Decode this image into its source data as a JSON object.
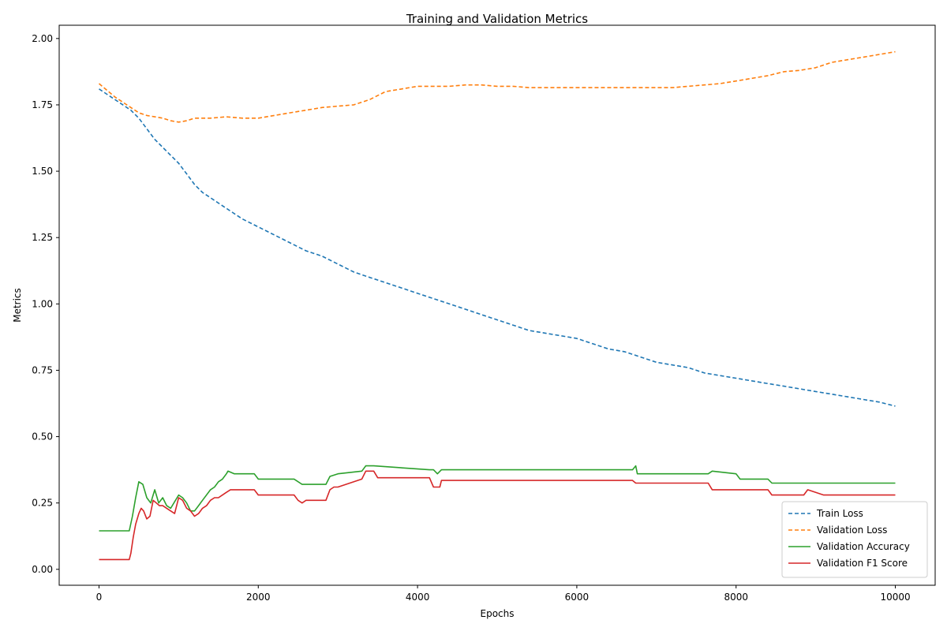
{
  "chart_data": {
    "type": "line",
    "title": "Training and Validation Metrics",
    "xlabel": "Epochs",
    "ylabel": "Metrics",
    "xlim": [
      -500,
      10500
    ],
    "ylim": [
      -0.06,
      2.05
    ],
    "xticks": [
      0,
      2000,
      4000,
      6000,
      8000,
      10000
    ],
    "xtick_labels": [
      "0",
      "2000",
      "4000",
      "6000",
      "8000",
      "10000"
    ],
    "yticks": [
      0.0,
      0.25,
      0.5,
      0.75,
      1.0,
      1.25,
      1.5,
      1.75,
      2.0
    ],
    "ytick_labels": [
      "0.00",
      "0.25",
      "0.50",
      "0.75",
      "1.00",
      "1.25",
      "1.50",
      "1.75",
      "2.00"
    ],
    "grid": false,
    "legend_position": "bottom-right",
    "series": [
      {
        "name": "Train Loss",
        "color": "#1f77b4",
        "style": "dashed",
        "x": [
          0,
          200,
          400,
          500,
          600,
          700,
          800,
          900,
          1000,
          1100,
          1200,
          1300,
          1400,
          1600,
          1800,
          2000,
          2200,
          2400,
          2600,
          2800,
          3000,
          3200,
          3400,
          3600,
          3800,
          4000,
          4200,
          4400,
          4600,
          4800,
          5000,
          5200,
          5400,
          5600,
          5800,
          6000,
          6200,
          6400,
          6600,
          6800,
          7000,
          7200,
          7400,
          7600,
          7800,
          8000,
          8200,
          8400,
          8600,
          8800,
          9000,
          9200,
          9400,
          9600,
          9800,
          10000
        ],
        "y": [
          1.81,
          1.77,
          1.73,
          1.7,
          1.66,
          1.62,
          1.59,
          1.56,
          1.53,
          1.49,
          1.45,
          1.42,
          1.4,
          1.36,
          1.32,
          1.29,
          1.26,
          1.23,
          1.2,
          1.18,
          1.15,
          1.12,
          1.1,
          1.08,
          1.06,
          1.04,
          1.02,
          1.0,
          0.98,
          0.96,
          0.94,
          0.92,
          0.9,
          0.89,
          0.88,
          0.87,
          0.85,
          0.83,
          0.82,
          0.8,
          0.78,
          0.77,
          0.76,
          0.74,
          0.73,
          0.72,
          0.71,
          0.7,
          0.69,
          0.68,
          0.67,
          0.66,
          0.65,
          0.64,
          0.63,
          0.615
        ]
      },
      {
        "name": "Validation Loss",
        "color": "#ff7f0e",
        "style": "dashed",
        "x": [
          0,
          200,
          400,
          500,
          600,
          800,
          900,
          1000,
          1100,
          1200,
          1400,
          1600,
          1800,
          2000,
          2200,
          2400,
          2600,
          2800,
          3000,
          3200,
          3400,
          3600,
          3800,
          4000,
          4200,
          4400,
          4600,
          4800,
          5000,
          5200,
          5400,
          5600,
          5800,
          6000,
          6200,
          6400,
          6600,
          6800,
          7000,
          7200,
          7400,
          7600,
          7800,
          8000,
          8200,
          8400,
          8600,
          8800,
          9000,
          9200,
          9400,
          9600,
          9800,
          10000
        ],
        "y": [
          1.83,
          1.78,
          1.74,
          1.72,
          1.71,
          1.7,
          1.69,
          1.685,
          1.69,
          1.7,
          1.7,
          1.705,
          1.7,
          1.7,
          1.71,
          1.72,
          1.73,
          1.74,
          1.745,
          1.75,
          1.77,
          1.8,
          1.81,
          1.82,
          1.82,
          1.82,
          1.825,
          1.825,
          1.82,
          1.82,
          1.815,
          1.815,
          1.815,
          1.815,
          1.815,
          1.815,
          1.815,
          1.815,
          1.815,
          1.815,
          1.82,
          1.825,
          1.83,
          1.84,
          1.85,
          1.86,
          1.875,
          1.88,
          1.89,
          1.91,
          1.92,
          1.93,
          1.94,
          1.95
        ]
      },
      {
        "name": "Validation Accuracy",
        "color": "#2ca02c",
        "style": "solid",
        "x": [
          0,
          380,
          420,
          460,
          500,
          550,
          600,
          650,
          700,
          750,
          800,
          850,
          900,
          1000,
          1050,
          1100,
          1150,
          1200,
          1250,
          1300,
          1400,
          1450,
          1500,
          1550,
          1600,
          1620,
          1700,
          1950,
          2000,
          2450,
          2550,
          2650,
          2850,
          2900,
          3000,
          3300,
          3350,
          3450,
          4150,
          4200,
          4250,
          4300,
          6700,
          6740,
          6760,
          7650,
          7700,
          8000,
          8050,
          8400,
          8450,
          9000,
          9100,
          10000
        ],
        "y": [
          0.145,
          0.145,
          0.2,
          0.27,
          0.33,
          0.32,
          0.27,
          0.25,
          0.3,
          0.25,
          0.27,
          0.24,
          0.23,
          0.28,
          0.27,
          0.25,
          0.22,
          0.22,
          0.24,
          0.26,
          0.3,
          0.31,
          0.33,
          0.34,
          0.36,
          0.37,
          0.36,
          0.36,
          0.34,
          0.34,
          0.32,
          0.32,
          0.32,
          0.35,
          0.36,
          0.37,
          0.39,
          0.39,
          0.375,
          0.375,
          0.36,
          0.375,
          0.375,
          0.39,
          0.36,
          0.36,
          0.37,
          0.36,
          0.34,
          0.34,
          0.325,
          0.325,
          0.325,
          0.325
        ]
      },
      {
        "name": "Validation F1 Score",
        "color": "#d62728",
        "style": "solid",
        "x": [
          0,
          380,
          400,
          430,
          460,
          500,
          530,
          560,
          600,
          640,
          680,
          720,
          760,
          800,
          850,
          900,
          950,
          1000,
          1050,
          1100,
          1150,
          1200,
          1250,
          1300,
          1350,
          1400,
          1450,
          1500,
          1550,
          1600,
          1650,
          1950,
          2000,
          2450,
          2500,
          2550,
          2600,
          2850,
          2900,
          2950,
          3000,
          3300,
          3350,
          3450,
          3500,
          4150,
          4200,
          4280,
          4300,
          6700,
          6740,
          6760,
          7650,
          7700,
          8000,
          8050,
          8400,
          8450,
          8850,
          8900,
          9100,
          9150,
          10000
        ],
        "y": [
          0.037,
          0.037,
          0.06,
          0.12,
          0.17,
          0.21,
          0.23,
          0.22,
          0.19,
          0.2,
          0.26,
          0.25,
          0.24,
          0.24,
          0.23,
          0.22,
          0.21,
          0.27,
          0.26,
          0.23,
          0.22,
          0.2,
          0.21,
          0.23,
          0.24,
          0.26,
          0.27,
          0.27,
          0.28,
          0.29,
          0.3,
          0.3,
          0.28,
          0.28,
          0.26,
          0.25,
          0.26,
          0.26,
          0.3,
          0.31,
          0.31,
          0.34,
          0.37,
          0.37,
          0.345,
          0.345,
          0.31,
          0.31,
          0.335,
          0.335,
          0.325,
          0.325,
          0.325,
          0.3,
          0.3,
          0.3,
          0.3,
          0.28,
          0.28,
          0.3,
          0.28,
          0.28,
          0.28
        ]
      }
    ]
  }
}
